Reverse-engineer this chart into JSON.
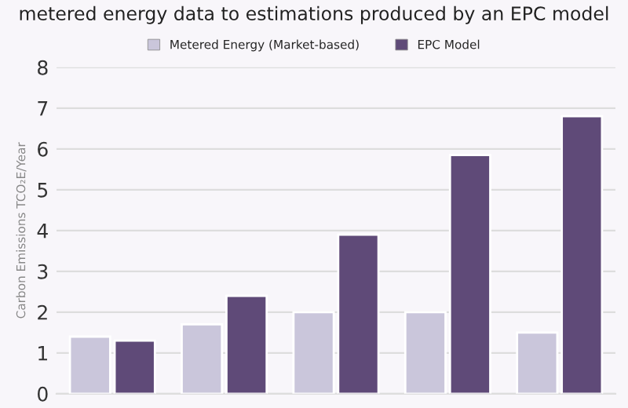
{
  "chart_data": {
    "type": "bar",
    "title": "metered energy data to estimations produced by an EPC model",
    "ylabel": "Carbon Emissions TCO₂E/Year",
    "categories": [
      null,
      null,
      null,
      null,
      null
    ],
    "series": [
      {
        "name": "Metered Energy (Market-based)",
        "color": "#cac6db",
        "values": [
          1.4,
          1.7,
          2.0,
          2.0,
          1.5
        ]
      },
      {
        "name": "EPC Model",
        "color": "#5f4a78",
        "values": [
          1.3,
          2.4,
          3.9,
          5.85,
          6.8
        ]
      }
    ],
    "ylim": [
      0,
      8
    ],
    "yticks": [
      0,
      1,
      2,
      3,
      4,
      5,
      6,
      7,
      8
    ],
    "grid": "y",
    "legend": "top"
  }
}
